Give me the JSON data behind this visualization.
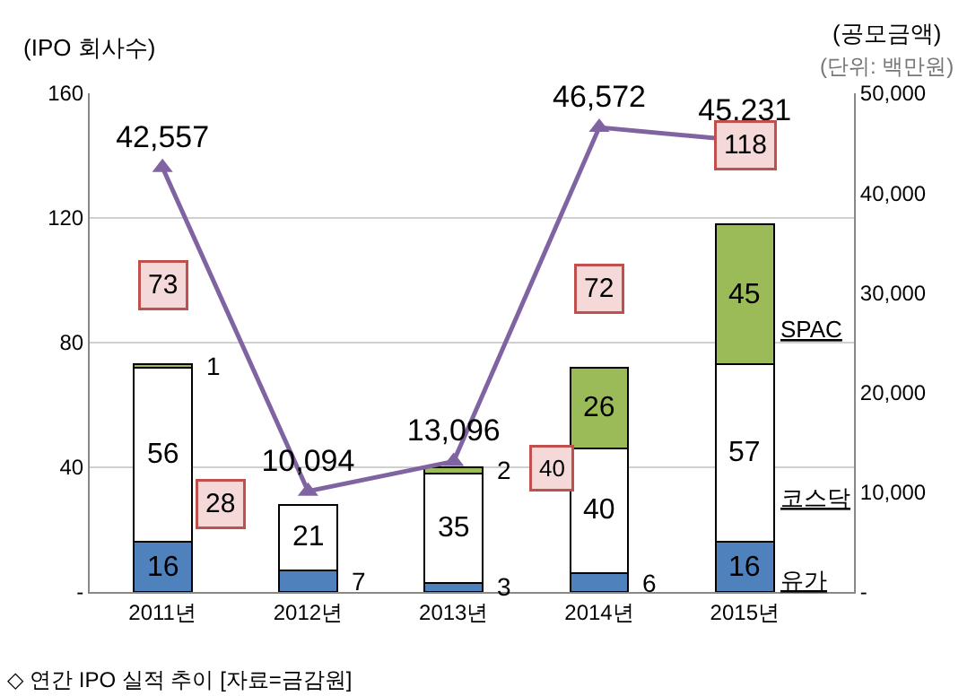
{
  "chart_data": {
    "type": "bar",
    "stacked": true,
    "ylabel": "(IPO 회사수)",
    "y2label": "(공모금액)",
    "categories": [
      "2011년",
      "2012년",
      "2013년",
      "2014년",
      "2015년"
    ],
    "series": [
      {
        "name": "유가",
        "color": "#4f81bd",
        "values": [
          16,
          7,
          3,
          6,
          16
        ],
        "value_labels": [
          "16",
          "7",
          "3",
          "6",
          "16"
        ]
      },
      {
        "name": "코스닥",
        "color": "#ffffff",
        "values": [
          56,
          21,
          35,
          40,
          57
        ],
        "value_labels": [
          "56",
          "21",
          "35",
          "40",
          "57"
        ]
      },
      {
        "name": "SPAC",
        "color": "#9bbb59",
        "values": [
          1,
          0,
          2,
          26,
          45
        ],
        "value_labels": [
          "1",
          null,
          "2",
          "26",
          "45"
        ]
      },
      {
        "type": "line",
        "axis": "y2",
        "color": "#8064a2",
        "marker": "triangle",
        "values": [
          42557,
          10094,
          13096,
          46572,
          45231
        ],
        "value_labels": [
          "42,557",
          "10,094",
          "13,096",
          "46,572",
          "45,231"
        ]
      }
    ],
    "totals": [
      "73",
      "28",
      "40",
      "72",
      "118"
    ],
    "ylim": [
      0,
      160
    ],
    "yticks": [
      {
        "value": 0,
        "label": "-"
      },
      40,
      80,
      120,
      160
    ],
    "y2lim": [
      0,
      50000
    ],
    "y2ticks": [
      {
        "value": 0,
        "label": "-"
      },
      {
        "value": 10000,
        "label": "10,000"
      },
      {
        "value": 20000,
        "label": "20,000"
      },
      {
        "value": 30000,
        "label": "30,000"
      },
      {
        "value": 40000,
        "label": "40,000"
      },
      {
        "value": 50000,
        "label": "50,000"
      }
    ],
    "grid": "y",
    "legend": false,
    "annotations": [
      "(단위: 백만원)",
      "◇ 연간 IPO 실적 추이 [자료=금감원]"
    ]
  }
}
